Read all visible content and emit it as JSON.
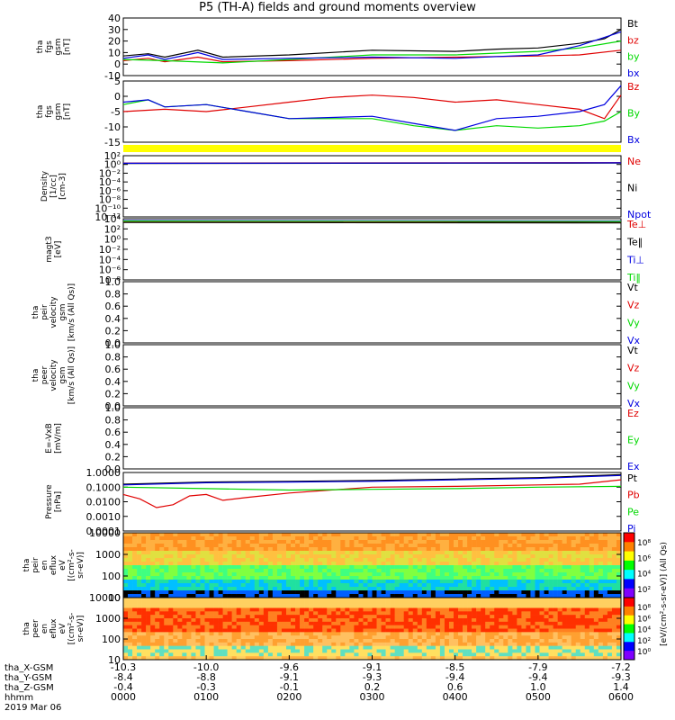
{
  "title": "P5 (TH-A) fields and ground moments overview",
  "colors": {
    "black": "#000000",
    "red": "#e00000",
    "green": "#00d800",
    "blue": "#0000e0",
    "yellow": "#ffff00"
  },
  "chart_data": [
    {
      "type": "line",
      "panel": "fgs",
      "ylabel": [
        "tha",
        "fgs",
        "gsm",
        "[nT]"
      ],
      "yticks": [
        "40",
        "30",
        "20",
        "10",
        "0",
        "-10"
      ],
      "ylim": [
        -10,
        40
      ],
      "series": [
        {
          "name": "Bt",
          "color": "#000000",
          "points": [
            [
              0,
              7
            ],
            [
              0.3,
              9
            ],
            [
              0.5,
              6
            ],
            [
              0.9,
              12
            ],
            [
              1.2,
              6
            ],
            [
              2,
              8
            ],
            [
              3,
              12
            ],
            [
              4,
              11
            ],
            [
              4.5,
              13
            ],
            [
              5,
              14
            ],
            [
              5.5,
              18
            ],
            [
              5.8,
              22
            ],
            [
              6,
              30
            ]
          ]
        },
        {
          "name": "bz",
          "color": "#e00000",
          "points": [
            [
              0,
              3
            ],
            [
              0.3,
              5
            ],
            [
              0.5,
              2
            ],
            [
              0.9,
              6
            ],
            [
              1.2,
              2
            ],
            [
              2,
              3
            ],
            [
              3,
              5
            ],
            [
              4,
              6
            ],
            [
              5,
              7
            ],
            [
              5.5,
              8
            ],
            [
              6,
              12
            ]
          ]
        },
        {
          "name": "by",
          "color": "#00d800",
          "points": [
            [
              0,
              4
            ],
            [
              0.5,
              3
            ],
            [
              1.2,
              1
            ],
            [
              2,
              4
            ],
            [
              3,
              8
            ],
            [
              4,
              8
            ],
            [
              5,
              11
            ],
            [
              5.5,
              14
            ],
            [
              6,
              20
            ]
          ]
        },
        {
          "name": "bx",
          "color": "#0000e0",
          "points": [
            [
              0,
              5
            ],
            [
              0.3,
              8
            ],
            [
              0.5,
              4
            ],
            [
              0.9,
              10
            ],
            [
              1.2,
              4
            ],
            [
              2,
              5
            ],
            [
              3,
              6
            ],
            [
              4,
              5
            ],
            [
              5,
              8
            ],
            [
              5.5,
              16
            ],
            [
              6,
              28
            ]
          ]
        }
      ]
    },
    {
      "type": "line",
      "panel": "fgs-gse",
      "ylabel": [
        "tha",
        "fgs",
        "gsm",
        "[nT]"
      ],
      "yticks": [
        "5",
        "0",
        "-5",
        "-10",
        "-15"
      ],
      "ylim": [
        -18,
        8
      ],
      "series": [
        {
          "name": "Bz",
          "color": "#e00000",
          "points": [
            [
              0,
              -5
            ],
            [
              0.5,
              -4
            ],
            [
              1,
              -5
            ],
            [
              1.5,
              -3
            ],
            [
              2,
              -1
            ],
            [
              2.5,
              1
            ],
            [
              3,
              2
            ],
            [
              3.5,
              1
            ],
            [
              4,
              -1
            ],
            [
              4.5,
              0
            ],
            [
              5,
              -2
            ],
            [
              5.5,
              -4
            ],
            [
              5.8,
              -8
            ],
            [
              6,
              2
            ]
          ]
        },
        {
          "name": "By",
          "color": "#00d800",
          "points": [
            [
              0,
              -2
            ],
            [
              0.3,
              0
            ],
            [
              0.5,
              -3
            ],
            [
              1,
              -2
            ],
            [
              1.5,
              -5
            ],
            [
              2,
              -8
            ],
            [
              3,
              -8
            ],
            [
              3.5,
              -11
            ],
            [
              4,
              -13
            ],
            [
              4.5,
              -11
            ],
            [
              5,
              -12
            ],
            [
              5.5,
              -11
            ],
            [
              5.8,
              -9
            ],
            [
              6,
              -5
            ]
          ]
        },
        {
          "name": "Bx",
          "color": "#0000e0",
          "points": [
            [
              0,
              -1
            ],
            [
              0.3,
              0
            ],
            [
              0.5,
              -3
            ],
            [
              1,
              -2
            ],
            [
              1.5,
              -5
            ],
            [
              2,
              -8
            ],
            [
              3,
              -7
            ],
            [
              3.5,
              -10
            ],
            [
              4,
              -13
            ],
            [
              4.5,
              -8
            ],
            [
              5,
              -7
            ],
            [
              5.5,
              -5
            ],
            [
              5.8,
              -2
            ],
            [
              6,
              6
            ]
          ]
        }
      ]
    },
    {
      "type": "line",
      "panel": "density",
      "ylabel": [
        "Density",
        "[1/cc]",
        "[cm-3]"
      ],
      "yticks": [
        "10²",
        "10⁰",
        "10⁻²",
        "10⁻⁴",
        "10⁻⁶",
        "10⁻⁸",
        "10⁻¹⁰",
        "10⁻¹²"
      ],
      "ylim": [
        -13,
        2
      ],
      "series": [
        {
          "name": "Ne",
          "color": "#e00000",
          "points": [
            [
              0,
              0.2
            ],
            [
              6,
              0.3
            ]
          ]
        },
        {
          "name": "Ni",
          "color": "#000000",
          "points": [
            [
              0,
              0.1
            ],
            [
              6,
              0.2
            ]
          ]
        },
        {
          "name": "Npot",
          "color": "#0000e0",
          "points": [
            [
              0,
              0.15
            ],
            [
              6,
              0.25
            ]
          ]
        }
      ]
    },
    {
      "type": "line",
      "panel": "temperature",
      "ylabel": [
        "magt3",
        "[eV]"
      ],
      "yticks": [
        "10⁴",
        "10²",
        "10⁰",
        "10⁻²",
        "10⁻⁴",
        "10⁻⁶",
        "10⁻⁸"
      ],
      "ylim": [
        -9,
        4
      ],
      "series": [
        {
          "name": "Te⊥",
          "color": "#e00000",
          "points": [
            [
              0,
              3.3
            ],
            [
              6,
              3.2
            ]
          ]
        },
        {
          "name": "Te‖",
          "color": "#000000",
          "points": [
            [
              0,
              3.2
            ],
            [
              6,
              3.1
            ]
          ]
        },
        {
          "name": "Ti⊥",
          "color": "#0000e0",
          "points": [
            [
              0,
              3.6
            ],
            [
              6,
              3.5
            ]
          ]
        },
        {
          "name": "Ti‖",
          "color": "#00d800",
          "points": [
            [
              0,
              3.5
            ],
            [
              6,
              3.4
            ]
          ]
        }
      ]
    },
    {
      "type": "line",
      "panel": "peir-velocity",
      "ylabel": [
        "tha",
        "peir",
        "velocity",
        "gsm",
        "[km/s (All Qs)]"
      ],
      "yticks": [
        "1.0",
        "0.8",
        "0.6",
        "0.4",
        "0.2",
        "0.0"
      ],
      "ylim": [
        0,
        1
      ],
      "series": [
        {
          "name": "Vt",
          "color": "#000000",
          "points": []
        },
        {
          "name": "Vz",
          "color": "#e00000",
          "points": []
        },
        {
          "name": "Vy",
          "color": "#00d800",
          "points": []
        },
        {
          "name": "Vx",
          "color": "#0000e0",
          "points": []
        }
      ]
    },
    {
      "type": "line",
      "panel": "peer-velocity",
      "ylabel": [
        "tha",
        "peer",
        "velocity",
        "gsm",
        "[km/s (All Qs)]"
      ],
      "yticks": [
        "1.0",
        "0.8",
        "0.6",
        "0.4",
        "0.2",
        "0.0"
      ],
      "ylim": [
        0,
        1
      ],
      "series": [
        {
          "name": "Vt",
          "color": "#000000",
          "points": []
        },
        {
          "name": "Vz",
          "color": "#e00000",
          "points": []
        },
        {
          "name": "Vy",
          "color": "#00d800",
          "points": []
        },
        {
          "name": "Vx",
          "color": "#0000e0",
          "points": []
        }
      ]
    },
    {
      "type": "line",
      "panel": "efield",
      "ylabel": [
        "E=-VxB",
        "[mV/m]"
      ],
      "yticks": [
        "1.0",
        "0.8",
        "0.6",
        "0.4",
        "0.2",
        "0.0"
      ],
      "ylim": [
        0,
        1
      ],
      "series": [
        {
          "name": "Ez",
          "color": "#e00000",
          "points": []
        },
        {
          "name": "Ey",
          "color": "#00d800",
          "points": []
        },
        {
          "name": "Ex",
          "color": "#0000e0",
          "points": []
        }
      ]
    },
    {
      "type": "line",
      "panel": "pressure",
      "log": true,
      "ylabel": [
        "Pressure",
        "[nPa]"
      ],
      "yticks": [
        "1.0000",
        "0.1000",
        "0.0100",
        "0.0010",
        "0.0001"
      ],
      "ylim": [
        -4,
        0
      ],
      "series": [
        {
          "name": "Pt",
          "color": "#000000",
          "points": [
            [
              0,
              -0.8
            ],
            [
              1,
              -0.65
            ],
            [
              2,
              -0.6
            ],
            [
              3,
              -0.55
            ],
            [
              4,
              -0.45
            ],
            [
              5,
              -0.35
            ],
            [
              6,
              -0.15
            ]
          ]
        },
        {
          "name": "Pb",
          "color": "#e00000",
          "points": [
            [
              0,
              -1.5
            ],
            [
              0.2,
              -1.8
            ],
            [
              0.4,
              -2.4
            ],
            [
              0.6,
              -2.2
            ],
            [
              0.8,
              -1.6
            ],
            [
              1,
              -1.5
            ],
            [
              1.2,
              -1.9
            ],
            [
              1.5,
              -1.7
            ],
            [
              2,
              -1.4
            ],
            [
              2.5,
              -1.2
            ],
            [
              3,
              -1.0
            ],
            [
              4,
              -0.95
            ],
            [
              5,
              -0.85
            ],
            [
              5.5,
              -0.8
            ],
            [
              6,
              -0.5
            ]
          ]
        },
        {
          "name": "Pe",
          "color": "#00d800",
          "points": [
            [
              0,
              -1.0
            ],
            [
              1,
              -1.1
            ],
            [
              2,
              -1.2
            ],
            [
              3,
              -1.15
            ],
            [
              4,
              -1.1
            ],
            [
              5,
              -1.0
            ],
            [
              6,
              -0.95
            ]
          ]
        },
        {
          "name": "Pi",
          "color": "#0000e0",
          "points": [
            [
              0,
              -0.85
            ],
            [
              1,
              -0.7
            ],
            [
              2,
              -0.65
            ],
            [
              3,
              -0.6
            ],
            [
              4,
              -0.5
            ],
            [
              5,
              -0.4
            ],
            [
              6,
              -0.2
            ]
          ]
        }
      ]
    },
    {
      "type": "heatmap",
      "panel": "peir-spectrogram",
      "ylabel": [
        "tha",
        "peir",
        "en",
        "eflux",
        "eV",
        "[(cm²-s-",
        "sr-eV)]"
      ],
      "yticks": [
        "10000",
        "1000",
        "100",
        "10"
      ],
      "colorbar_ticks": [
        "10⁸",
        "10⁶",
        "10⁴",
        "10²"
      ]
    },
    {
      "type": "heatmap",
      "panel": "peer-spectrogram",
      "ylabel": [
        "tha",
        "peer",
        "en",
        "eflux",
        "eV",
        "[(cm²-s-",
        "sr-eV)]"
      ],
      "yticks": [
        "10000",
        "1000",
        "100",
        "10"
      ],
      "colorbar_ticks": [
        "10⁸",
        "10⁶",
        "10⁴",
        "10²",
        "10⁰"
      ]
    }
  ],
  "colorbar_label": "[eV/(cm²-s-sr-eV)] (All Qs)",
  "xaxis": {
    "row_labels": [
      "tha_X-GSM",
      "tha_Y-GSM",
      "tha_Z-GSM",
      "hhmm",
      "2019 Mar 06"
    ],
    "columns": [
      [
        "-10.3",
        "-8.4",
        "-0.4",
        "0000"
      ],
      [
        "-10.0",
        "-8.8",
        "-0.3",
        "0100"
      ],
      [
        "-9.6",
        "-9.1",
        "-0.1",
        "0200"
      ],
      [
        "-9.1",
        "-9.3",
        "0.2",
        "0300"
      ],
      [
        "-8.5",
        "-9.4",
        "0.6",
        "0400"
      ],
      [
        "-7.9",
        "-9.4",
        "1.0",
        "0500"
      ],
      [
        "-7.2",
        "-9.3",
        "1.4",
        "0600"
      ]
    ]
  }
}
